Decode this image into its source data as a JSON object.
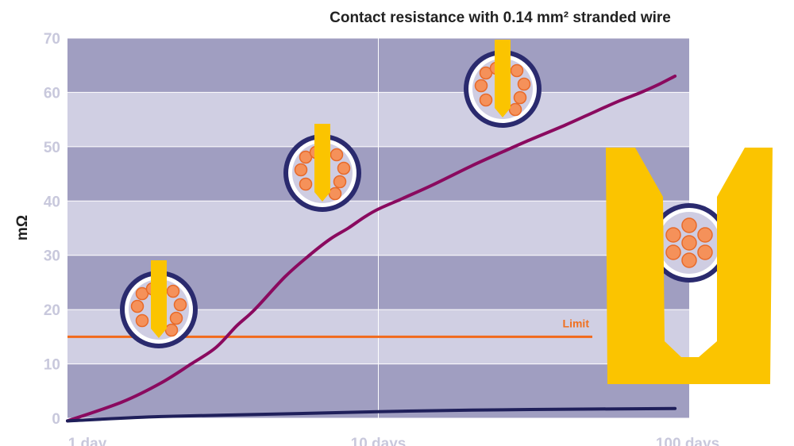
{
  "chart_data": {
    "type": "line",
    "title": "Contact resistance with 0.14 mm² stranded wire",
    "xlabel": "",
    "ylabel": "mΩ",
    "x_scale": "log",
    "xlim_days": [
      1,
      100
    ],
    "ylim": [
      0,
      70
    ],
    "y_ticks": [
      "0",
      "10",
      "20",
      "30",
      "40",
      "50",
      "60",
      "70"
    ],
    "x_ticks": [
      {
        "value": 1,
        "label": "1 day"
      },
      {
        "value": 10,
        "label": "10 days"
      },
      {
        "value": 100,
        "label": "100 days"
      }
    ],
    "grid": true,
    "limit": {
      "value": 15,
      "label": "Limit",
      "color": "#f26a1b"
    },
    "series": [
      {
        "color": "#8a0a5f",
        "x": [
          1,
          1.5,
          2,
          2.5,
          3,
          3.5,
          4,
          5,
          6,
          7,
          8,
          9,
          10,
          12,
          15,
          20,
          25,
          30,
          40,
          50,
          60,
          70,
          80,
          90
        ],
        "y": [
          -0.5,
          3,
          6.5,
          10,
          13,
          17,
          20,
          26,
          30,
          33,
          35,
          37,
          38.5,
          40.5,
          43,
          46.5,
          49,
          51,
          54,
          56.5,
          58.5,
          60,
          61.5,
          63
        ]
      },
      {
        "color": "#1f1f5a",
        "x": [
          1,
          2,
          5,
          10,
          20,
          50,
          90
        ],
        "y": [
          -0.5,
          0.3,
          0.8,
          1.2,
          1.5,
          1.7,
          1.8
        ]
      }
    ],
    "colors": {
      "plot_band_dark": "#a09ec1",
      "plot_band_light": "#d0cfe3",
      "terminal_yellow": "#fbc400",
      "strand_orange": "#f5915a",
      "wire_ring": "#2a2a6e"
    }
  }
}
